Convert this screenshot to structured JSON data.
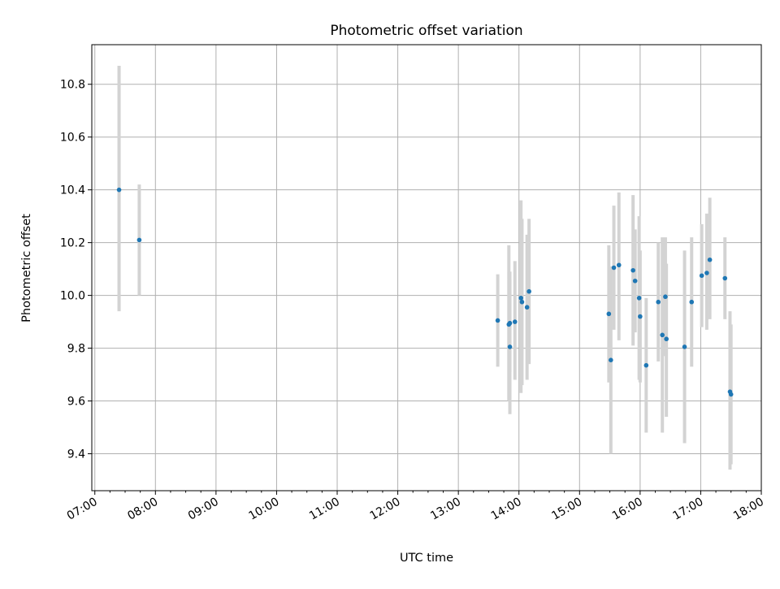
{
  "chart_data": {
    "type": "scatter",
    "title": "Photometric offset variation",
    "xlabel": "UTC time",
    "ylabel": "Photometric offset",
    "xlim": [
      "06:57",
      "18:00"
    ],
    "ylim": [
      9.26,
      10.95
    ],
    "x_ticks": [
      "07:00",
      "08:00",
      "09:00",
      "10:00",
      "11:00",
      "12:00",
      "13:00",
      "14:00",
      "15:00",
      "16:00",
      "17:00",
      "18:00"
    ],
    "y_ticks": [
      9.4,
      9.6,
      9.8,
      10.0,
      10.2,
      10.4,
      10.6,
      10.8
    ],
    "y_tick_labels": [
      "9.4",
      "9.6",
      "9.8",
      "10.0",
      "10.2",
      "10.4",
      "10.6",
      "10.8"
    ],
    "grid": true,
    "series": [
      {
        "marker_color": "#1f77b4",
        "errorbar_color": "#d3d3d3",
        "points": [
          {
            "x": "07:24",
            "y": 10.4,
            "lo": 9.94,
            "hi": 10.87
          },
          {
            "x": "07:44",
            "y": 10.21,
            "lo": 10.0,
            "hi": 10.42
          },
          {
            "x": "13:39",
            "y": 9.905,
            "lo": 9.73,
            "hi": 10.08
          },
          {
            "x": "13:50",
            "y": 9.89,
            "lo": 9.6,
            "hi": 10.19
          },
          {
            "x": "13:51",
            "y": 9.895,
            "lo": 9.71,
            "hi": 10.09
          },
          {
            "x": "13:51",
            "y": 9.805,
            "lo": 9.55,
            "hi": 10.06
          },
          {
            "x": "13:56",
            "y": 9.9,
            "lo": 9.68,
            "hi": 10.13
          },
          {
            "x": "14:02",
            "y": 9.99,
            "lo": 9.63,
            "hi": 10.36
          },
          {
            "x": "14:03",
            "y": 9.975,
            "lo": 9.66,
            "hi": 10.29
          },
          {
            "x": "14:08",
            "y": 9.955,
            "lo": 9.68,
            "hi": 10.23
          },
          {
            "x": "14:10",
            "y": 10.015,
            "lo": 9.74,
            "hi": 10.29
          },
          {
            "x": "15:29",
            "y": 9.93,
            "lo": 9.67,
            "hi": 10.19
          },
          {
            "x": "15:31",
            "y": 9.755,
            "lo": 9.4,
            "hi": 10.11
          },
          {
            "x": "15:34",
            "y": 10.105,
            "lo": 9.87,
            "hi": 10.34
          },
          {
            "x": "15:39",
            "y": 10.115,
            "lo": 9.83,
            "hi": 10.39
          },
          {
            "x": "15:53",
            "y": 10.095,
            "lo": 9.81,
            "hi": 10.38
          },
          {
            "x": "15:55",
            "y": 10.055,
            "lo": 9.86,
            "hi": 10.25
          },
          {
            "x": "15:59",
            "y": 9.99,
            "lo": 9.68,
            "hi": 10.3
          },
          {
            "x": "16:00",
            "y": 9.92,
            "lo": 9.67,
            "hi": 10.17
          },
          {
            "x": "16:06",
            "y": 9.735,
            "lo": 9.48,
            "hi": 9.99
          },
          {
            "x": "16:18",
            "y": 9.975,
            "lo": 9.75,
            "hi": 10.2
          },
          {
            "x": "16:22",
            "y": 9.85,
            "lo": 9.48,
            "hi": 10.22
          },
          {
            "x": "16:25",
            "y": 9.995,
            "lo": 9.77,
            "hi": 10.22
          },
          {
            "x": "16:26",
            "y": 9.835,
            "lo": 9.54,
            "hi": 10.12
          },
          {
            "x": "16:44",
            "y": 9.805,
            "lo": 9.44,
            "hi": 10.17
          },
          {
            "x": "16:51",
            "y": 9.975,
            "lo": 9.73,
            "hi": 10.22
          },
          {
            "x": "17:01",
            "y": 10.075,
            "lo": 9.88,
            "hi": 10.27
          },
          {
            "x": "17:06",
            "y": 10.085,
            "lo": 9.87,
            "hi": 10.31
          },
          {
            "x": "17:09",
            "y": 10.135,
            "lo": 9.91,
            "hi": 10.37
          },
          {
            "x": "17:24",
            "y": 10.065,
            "lo": 9.91,
            "hi": 10.22
          },
          {
            "x": "17:29",
            "y": 9.635,
            "lo": 9.34,
            "hi": 9.94
          },
          {
            "x": "17:30",
            "y": 9.625,
            "lo": 9.36,
            "hi": 9.89
          }
        ]
      }
    ]
  }
}
